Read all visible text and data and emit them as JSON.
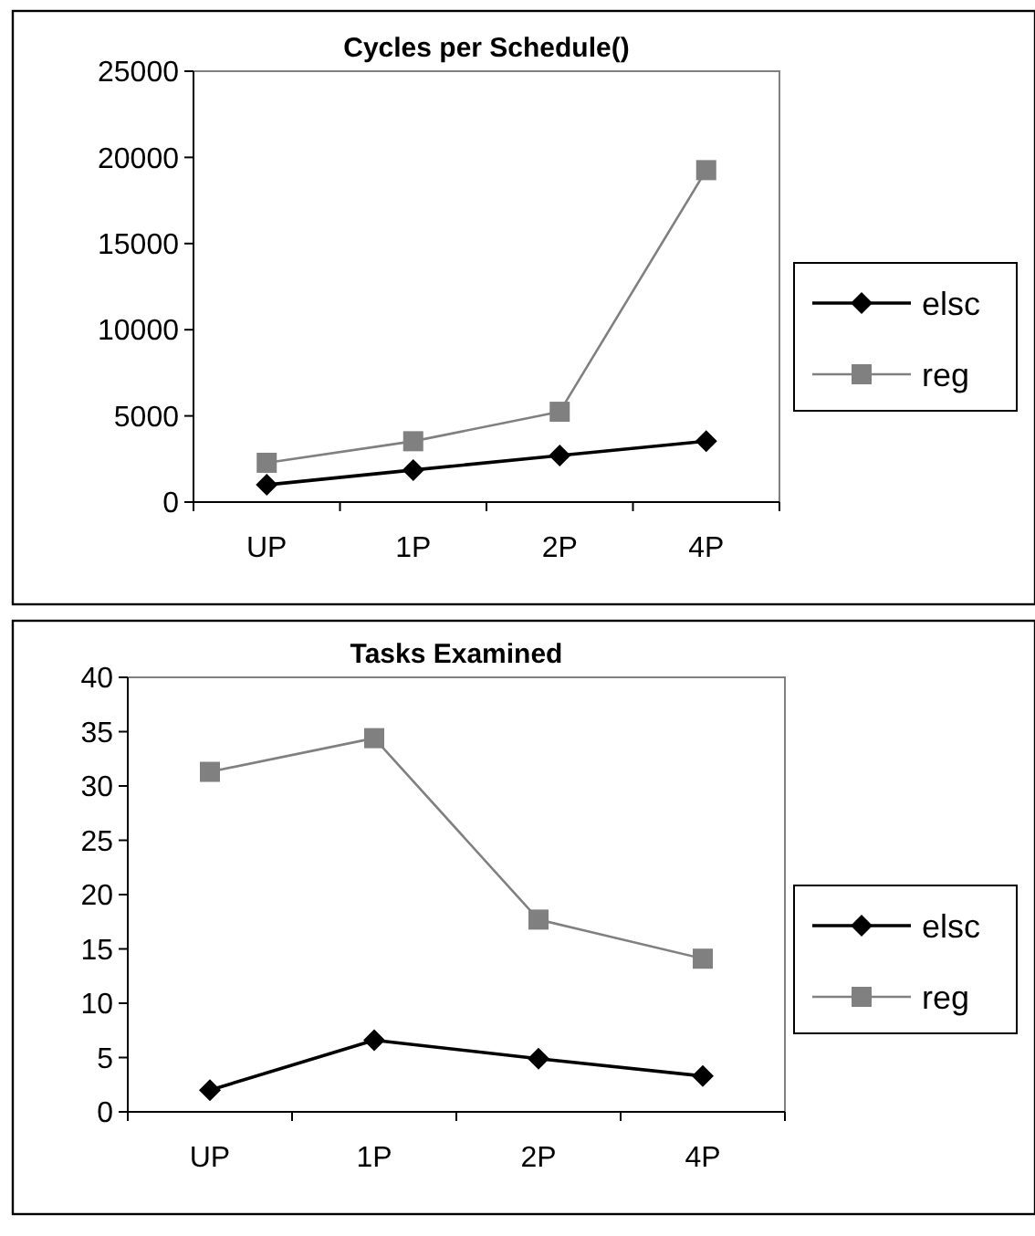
{
  "chart_data": [
    {
      "type": "line",
      "title": "Cycles per Schedule()",
      "categories": [
        "UP",
        "1P",
        "2P",
        "4P"
      ],
      "ylim": [
        0,
        25000
      ],
      "yticks": [
        0,
        5000,
        10000,
        15000,
        20000,
        25000
      ],
      "grid": false,
      "legend": "right",
      "series": [
        {
          "name": "elsc",
          "color": "#000000",
          "marker": "diamond",
          "values": [
            1000,
            1860,
            2700,
            3530
          ]
        },
        {
          "name": "reg",
          "color": "#808080",
          "marker": "square",
          "values": [
            2280,
            3530,
            5240,
            19260
          ]
        }
      ]
    },
    {
      "type": "line",
      "title": "Tasks Examined",
      "categories": [
        "UP",
        "1P",
        "2P",
        "4P"
      ],
      "ylim": [
        0,
        40
      ],
      "yticks": [
        0,
        5,
        10,
        15,
        20,
        25,
        30,
        35,
        40
      ],
      "grid": false,
      "legend": "right",
      "series": [
        {
          "name": "elsc",
          "color": "#000000",
          "marker": "diamond",
          "values": [
            2.0,
            6.6,
            4.9,
            3.3
          ]
        },
        {
          "name": "reg",
          "color": "#808080",
          "marker": "square",
          "values": [
            31.3,
            34.4,
            17.7,
            14.1
          ]
        }
      ]
    }
  ]
}
